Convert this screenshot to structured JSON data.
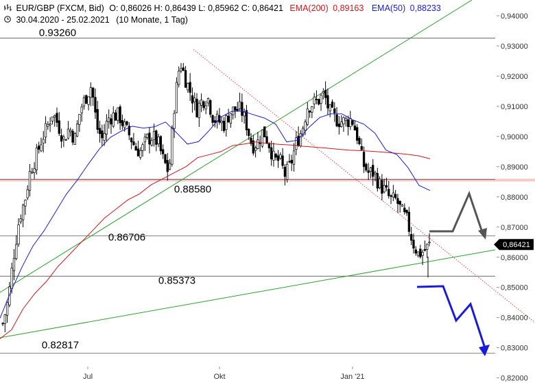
{
  "header": {
    "symbol": "EUR/GBP (FXCM, Bid)",
    "ohlc": "O: 0,86026  H: 0,86439  L: 0,85962  C: 0,86421",
    "ema200_label": "EMA(200)",
    "ema200_value": "0,89163",
    "ema50_label": "EMA(50)",
    "ema50_value": "0,88233",
    "range": "30.04.2020 - 25.02.2021",
    "period": "(10 Monate, 1 Tag)",
    "chart_icon": "bar-chart-icon",
    "clock_icon": "clock-icon"
  },
  "colors": {
    "candle": "#000000",
    "ema200": "#d0161b",
    "ema50": "#1c1cd6",
    "trendline": "#2ca02c",
    "down_trendline": "#e04040",
    "arrow_gray": "#555555",
    "arrow_blue": "#1a1adc",
    "resistance_band": "#f4b8b8",
    "hline": "#555555",
    "price_tag_bg": "#000000"
  },
  "chart_data": {
    "type": "candlestick",
    "x_ticks": [
      "Jul",
      "Okt",
      "Jan '21"
    ],
    "y_ticks": [
      "0,94000",
      "0,93000",
      "0,92000",
      "0,91000",
      "0,90000",
      "0,89000",
      "0,88000",
      "0,87000",
      "0,86000",
      "0,85000",
      "0,84000",
      "0,83000",
      "0,82000"
    ],
    "ylim": [
      0.82,
      0.945
    ],
    "current_price_label": "0,86421",
    "current_price": 0.86421,
    "level_labels": [
      {
        "label": "0.93260",
        "value": 0.9326
      },
      {
        "label": "0.88580",
        "value": 0.8858
      },
      {
        "label": "0.86706",
        "value": 0.86706
      },
      {
        "label": "0.85373",
        "value": 0.85373
      },
      {
        "label": "0.82817",
        "value": 0.82817
      }
    ],
    "resistance_band": [
      0.8851,
      0.886
    ],
    "close_path": [
      0.838,
      0.846,
      0.861,
      0.873,
      0.879,
      0.889,
      0.893,
      0.899,
      0.903,
      0.908,
      0.904,
      0.899,
      0.903,
      0.899,
      0.909,
      0.913,
      0.917,
      0.903,
      0.899,
      0.906,
      0.907,
      0.907,
      0.903,
      0.9,
      0.896,
      0.895,
      0.899,
      0.9,
      0.898,
      0.892,
      0.888,
      0.911,
      0.925,
      0.919,
      0.914,
      0.909,
      0.912,
      0.913,
      0.906,
      0.905,
      0.904,
      0.908,
      0.909,
      0.909,
      0.904,
      0.897,
      0.898,
      0.902,
      0.898,
      0.892,
      0.892,
      0.887,
      0.891,
      0.898,
      0.902,
      0.91,
      0.911,
      0.912,
      0.914,
      0.908,
      0.906,
      0.905,
      0.905,
      0.906,
      0.9,
      0.891,
      0.888,
      0.888,
      0.884,
      0.882,
      0.879,
      0.879,
      0.875,
      0.872,
      0.865,
      0.861,
      0.862,
      0.864
    ],
    "ema200": [
      0.833,
      0.836,
      0.843,
      0.848,
      0.852,
      0.857,
      0.861,
      0.865,
      0.869,
      0.873,
      0.876,
      0.879,
      0.881,
      0.884,
      0.886,
      0.888,
      0.89,
      0.893,
      0.894,
      0.895,
      0.897,
      0.8975,
      0.8982,
      0.8977,
      0.8974,
      0.8972,
      0.8968,
      0.8965,
      0.8962,
      0.8958,
      0.8955,
      0.8953,
      0.8951,
      0.8948,
      0.8945,
      0.8941,
      0.8936,
      0.8926
    ],
    "ema50": [
      0.8398,
      0.8488,
      0.8568,
      0.8638,
      0.8688,
      0.8748,
      0.8808,
      0.8855,
      0.8908,
      0.8958,
      0.8997,
      0.9018,
      0.9034,
      0.9028,
      0.9032,
      0.9048,
      0.9013,
      0.8975,
      0.8983,
      0.9021,
      0.9064,
      0.9083,
      0.9084,
      0.9072,
      0.9061,
      0.9041,
      0.8982,
      0.8988,
      0.903,
      0.9063,
      0.9075,
      0.9075,
      0.9055,
      0.9041,
      0.9011,
      0.8955,
      0.894,
      0.8897,
      0.8838,
      0.8821
    ]
  }
}
